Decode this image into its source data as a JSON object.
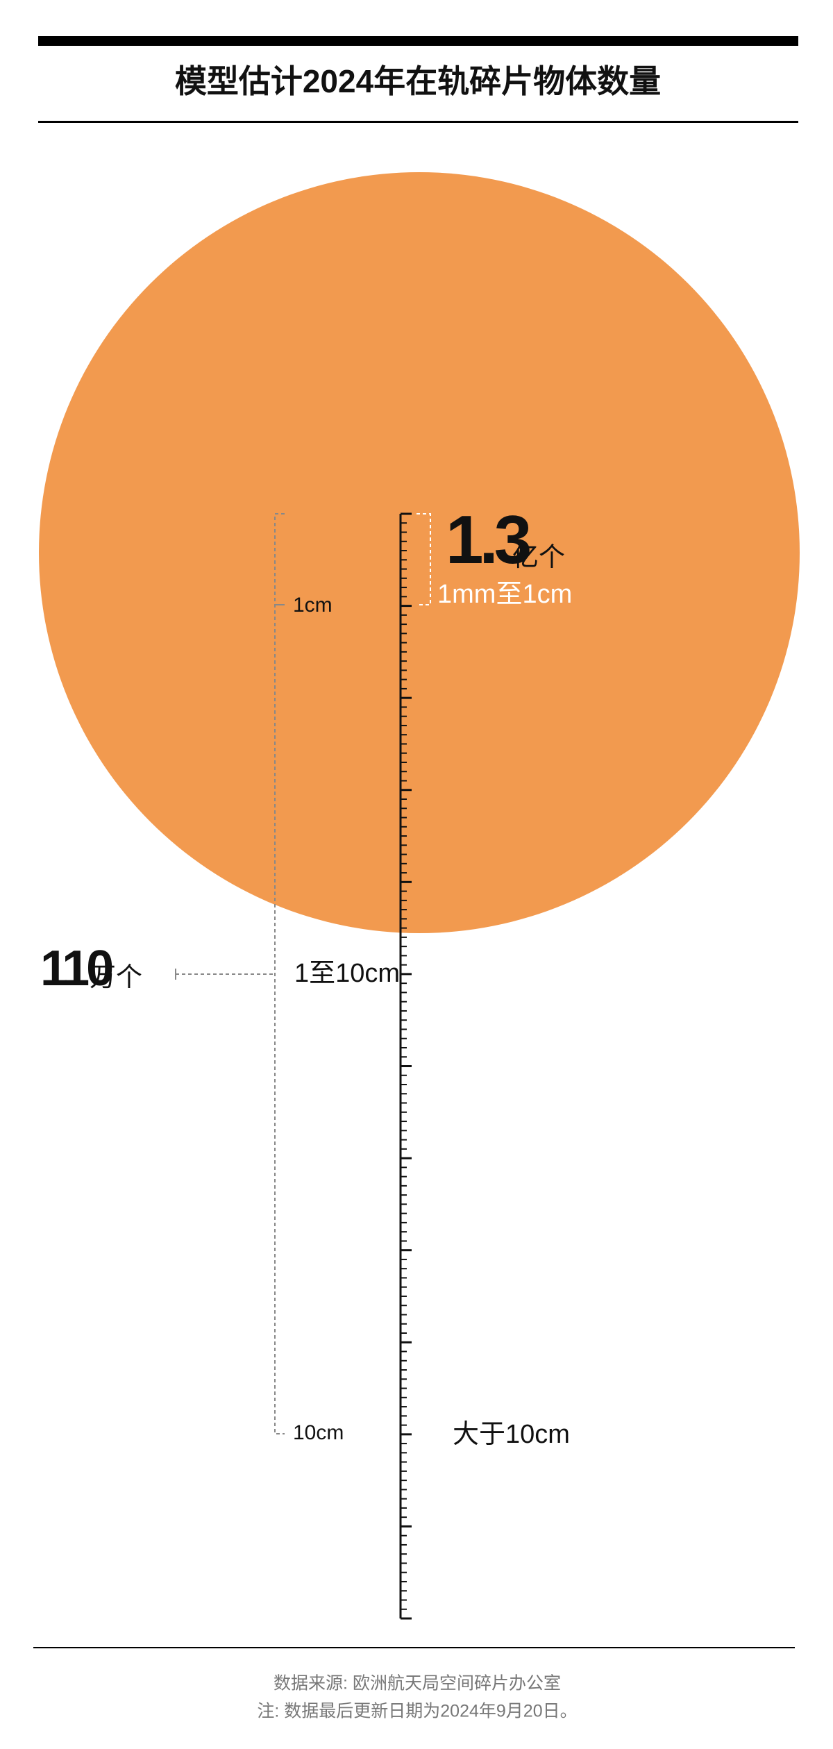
{
  "title": "模型估计2024年在轨碎片物体数量",
  "groups": [
    {
      "count": "1.3",
      "unit": "亿个",
      "size": "1mm至1cm"
    },
    {
      "count": "110",
      "unit": "万个",
      "size": "1至10cm"
    },
    {
      "size": "大于10cm"
    }
  ],
  "scale_labels": [
    "1cm",
    "10cm"
  ],
  "footer": {
    "source": "数据来源: 欧洲航天局空间碎片办公室",
    "note": "注: 数据最后更新日期为2024年9月20日。"
  }
}
